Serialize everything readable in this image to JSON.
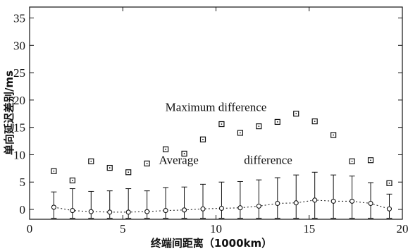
{
  "chart_data": {
    "type": "scatter",
    "xlabel": "终端间距离（1000km）",
    "ylabel": "单向延迟差别/ms",
    "xlim": [
      0,
      20
    ],
    "ylim": [
      -1.8,
      37
    ],
    "xticks": [
      0,
      5,
      10,
      15,
      20
    ],
    "yticks": [
      0,
      5,
      10,
      15,
      20,
      25,
      30,
      35
    ],
    "grid": false,
    "annotations": [
      {
        "text": "Maximum difference",
        "x": 10.0,
        "y": 18.0
      },
      {
        "text": "Average",
        "x": 8.0,
        "y": 8.3
      },
      {
        "text": "difference",
        "x": 12.8,
        "y": 8.3
      }
    ],
    "series": [
      {
        "marker": "square-dot",
        "x": [
          1.3,
          2.3,
          3.3,
          4.3,
          5.3,
          6.3,
          7.3,
          8.3,
          9.3,
          10.3,
          11.3,
          12.3,
          13.3,
          14.3,
          15.3,
          16.3,
          17.3,
          18.3,
          19.3
        ],
        "y": [
          7.0,
          5.3,
          8.8,
          7.6,
          6.8,
          8.4,
          11.0,
          10.2,
          12.8,
          15.6,
          14.0,
          15.2,
          16.0,
          17.5,
          16.1,
          13.6,
          8.8,
          9.0,
          4.8
        ]
      },
      {
        "marker": "circle-errorbar",
        "line": "dotted",
        "x": [
          1.3,
          2.3,
          3.3,
          4.3,
          5.3,
          6.3,
          7.3,
          8.3,
          9.3,
          10.3,
          11.3,
          12.3,
          13.3,
          14.3,
          15.3,
          16.3,
          17.3,
          18.3,
          19.3
        ],
        "y": [
          0.4,
          -0.2,
          -0.4,
          -0.5,
          -0.5,
          -0.4,
          -0.2,
          -0.1,
          0.1,
          0.2,
          0.3,
          0.6,
          1.1,
          1.2,
          1.7,
          1.5,
          1.5,
          1.1,
          0.1
        ],
        "err_upper": [
          3.2,
          3.8,
          3.3,
          3.4,
          3.8,
          3.4,
          4.0,
          4.1,
          4.6,
          5.0,
          5.1,
          5.4,
          5.8,
          6.3,
          6.8,
          6.3,
          6.1,
          4.9,
          2.8
        ],
        "err_lower": [
          -1.6,
          -1.6,
          -1.6,
          -1.6,
          -1.6,
          -1.6,
          -1.6,
          -1.6,
          -1.6,
          -1.6,
          -1.6,
          -1.6,
          -1.6,
          -1.6,
          -1.6,
          -1.6,
          -1.6,
          -1.6,
          -1.6
        ]
      }
    ]
  }
}
